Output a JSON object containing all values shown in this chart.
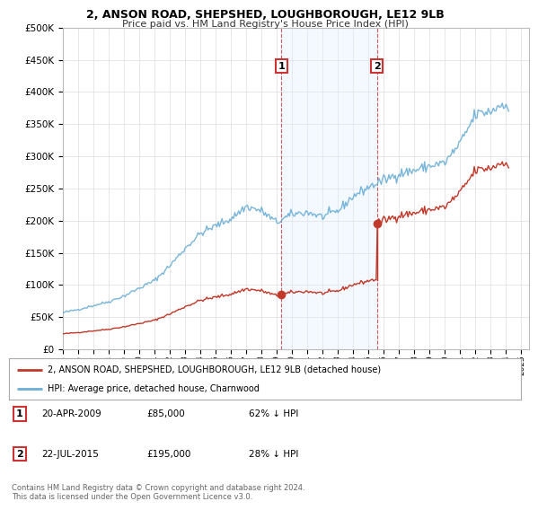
{
  "title": "2, ANSON ROAD, SHEPSHED, LOUGHBOROUGH, LE12 9LB",
  "subtitle": "Price paid vs. HM Land Registry's House Price Index (HPI)",
  "ylabel_ticks": [
    "£0",
    "£50K",
    "£100K",
    "£150K",
    "£200K",
    "£250K",
    "£300K",
    "£350K",
    "£400K",
    "£450K",
    "£500K"
  ],
  "ylabel_values": [
    0,
    50000,
    100000,
    150000,
    200000,
    250000,
    300000,
    350000,
    400000,
    450000,
    500000
  ],
  "ylim": [
    0,
    500000
  ],
  "xlim_start": 1995.0,
  "xlim_end": 2025.5,
  "hpi_color": "#6baed6",
  "sale_color": "#c0392b",
  "shaded_color": "#ddeeff",
  "marker1_x": 2009.3,
  "marker1_y": 85000,
  "marker2_x": 2015.55,
  "marker2_y": 195000,
  "marker1_label": "1",
  "marker2_label": "2",
  "legend_sale_label": "2, ANSON ROAD, SHEPSHED, LOUGHBOROUGH, LE12 9LB (detached house)",
  "legend_hpi_label": "HPI: Average price, detached house, Charnwood",
  "table_row1": [
    "1",
    "20-APR-2009",
    "£85,000",
    "62% ↓ HPI"
  ],
  "table_row2": [
    "2",
    "22-JUL-2015",
    "£195,000",
    "28% ↓ HPI"
  ],
  "footnote": "Contains HM Land Registry data © Crown copyright and database right 2024.\nThis data is licensed under the Open Government Licence v3.0.",
  "background_color": "#ffffff",
  "grid_color": "#dddddd",
  "hatch_start": 2024.25
}
